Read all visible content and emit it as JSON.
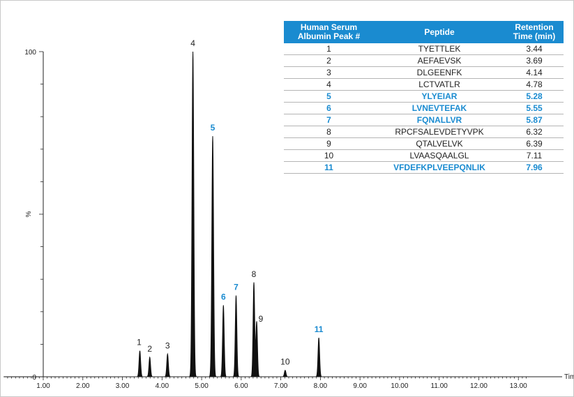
{
  "chart_data": {
    "type": "line",
    "xlabel": "Time",
    "ylabel": "%",
    "xlim": [
      0.0,
      13.2
    ],
    "ylim": [
      0,
      100
    ],
    "x_ticks": [
      "1.00",
      "2.00",
      "3.00",
      "4.00",
      "5.00",
      "6.00",
      "7.00",
      "8.00",
      "9.00",
      "10.00",
      "11.00",
      "12.00",
      "13.00"
    ],
    "y_ticks": [
      "0",
      "%",
      "100"
    ],
    "peaks": [
      {
        "label": "1",
        "rt": 3.44,
        "height": 8,
        "highlight": false
      },
      {
        "label": "2",
        "rt": 3.69,
        "height": 6,
        "highlight": false
      },
      {
        "label": "3",
        "rt": 4.14,
        "height": 7,
        "highlight": false
      },
      {
        "label": "4",
        "rt": 4.78,
        "height": 100,
        "highlight": false
      },
      {
        "label": "5",
        "rt": 5.28,
        "height": 74,
        "highlight": true
      },
      {
        "label": "6",
        "rt": 5.55,
        "height": 22,
        "highlight": true
      },
      {
        "label": "7",
        "rt": 5.87,
        "height": 25,
        "highlight": true
      },
      {
        "label": "8",
        "rt": 6.32,
        "height": 29,
        "highlight": false
      },
      {
        "label": "9",
        "rt": 6.39,
        "height": 17,
        "highlight": false
      },
      {
        "label": "10",
        "rt": 7.11,
        "height": 2,
        "highlight": false
      },
      {
        "label": "11",
        "rt": 7.96,
        "height": 12,
        "highlight": true
      }
    ]
  },
  "table": {
    "headers": [
      "Human Serum Albumin Peak #",
      "Peptide",
      "Retention Time (min)"
    ],
    "rows": [
      {
        "peak": "1",
        "peptide": "TYETTLEK",
        "rt": "3.44",
        "highlight": false
      },
      {
        "peak": "2",
        "peptide": "AEFAEVSK",
        "rt": "3.69",
        "highlight": false
      },
      {
        "peak": "3",
        "peptide": "DLGEENFK",
        "rt": "4.14",
        "highlight": false
      },
      {
        "peak": "4",
        "peptide": "LCTVATLR",
        "rt": "4.78",
        "highlight": false
      },
      {
        "peak": "5",
        "peptide": "YLYEIAR",
        "rt": "5.28",
        "highlight": true
      },
      {
        "peak": "6",
        "peptide": "LVNEVTEFAK",
        "rt": "5.55",
        "highlight": true
      },
      {
        "peak": "7",
        "peptide": "FQNALLVR",
        "rt": "5.87",
        "highlight": true
      },
      {
        "peak": "8",
        "peptide": "RPCFSALEVDETYVPK",
        "rt": "6.32",
        "highlight": false
      },
      {
        "peak": "9",
        "peptide": "QTALVELVK",
        "rt": "6.39",
        "highlight": false
      },
      {
        "peak": "10",
        "peptide": "LVAASQAALGL",
        "rt": "7.11",
        "highlight": false
      },
      {
        "peak": "11",
        "peptide": "VFDEFKPLVEEPQNLIK",
        "rt": "7.96",
        "highlight": true
      }
    ]
  },
  "colors": {
    "highlight": "#1a8bd0",
    "trace": "#111111",
    "axis": "#222222",
    "header_bg": "#1a8bd0"
  }
}
